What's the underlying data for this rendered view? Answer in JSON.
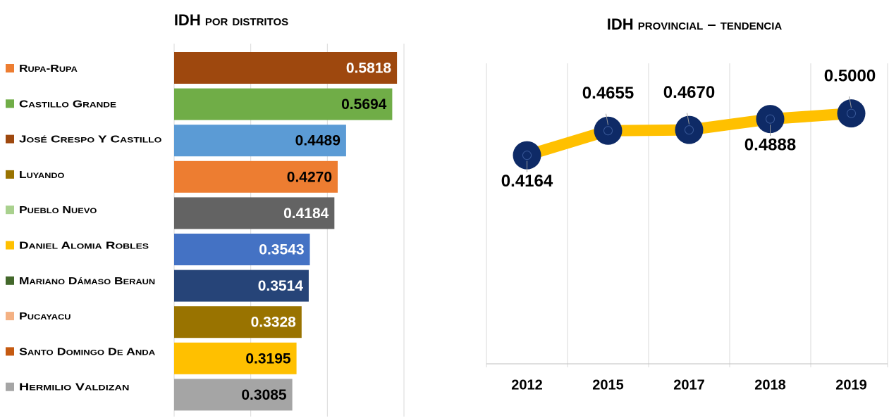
{
  "chart_data": [
    {
      "type": "hbar",
      "title": "IDH por distritos",
      "categories": [
        "Rupa-Rupa",
        "Castillo Grande",
        "José Crespo Y Castillo",
        "Luyando",
        "Pueblo Nuevo",
        "Daniel Alomia Robles",
        "Mariano Dámaso Beraun",
        "Pucayacu",
        "Santo Domingo De Anda",
        "Hermilio Valdizan"
      ],
      "values": [
        0.5818,
        0.5694,
        0.4489,
        0.427,
        0.4184,
        0.3543,
        0.3514,
        0.3328,
        0.3195,
        0.3085
      ],
      "value_labels": [
        "0.5818",
        "0.5694",
        "0.4489",
        "0.4270",
        "0.4184",
        "0.3543",
        "0.3514",
        "0.3328",
        "0.3195",
        "0.3085"
      ],
      "colors": [
        "#9E480E",
        "#70AD47",
        "#5B9BD5",
        "#ED7D31",
        "#636363",
        "#4472C4",
        "#264478",
        "#997300",
        "#FFC000",
        "#A5A5A5"
      ],
      "legend_colors": [
        "#ED7D31",
        "#70AD47",
        "#9E480E",
        "#997300",
        "#A9D18E",
        "#FFC000",
        "#43682B",
        "#F4B183",
        "#C55A11",
        "#A5A5A5"
      ],
      "xlim": [
        0,
        0.6
      ],
      "xticks": [
        0,
        0.2,
        0.4,
        0.6
      ],
      "grid": true
    },
    {
      "type": "line",
      "title": "IDH provincial – tendencia",
      "categories": [
        "2012",
        "2015",
        "2017",
        "2018",
        "2019"
      ],
      "values": [
        0.4164,
        0.4655,
        0.467,
        0.4888,
        0.5
      ],
      "value_labels": [
        "0.4164",
        "0.4655",
        "0.4670",
        "0.4888",
        "0.5000"
      ],
      "label_position": [
        "below",
        "above",
        "above",
        "below",
        "above"
      ],
      "color": "#FFC000",
      "marker_color": "#0E2A66",
      "ylim": [
        0,
        0.6
      ]
    }
  ]
}
